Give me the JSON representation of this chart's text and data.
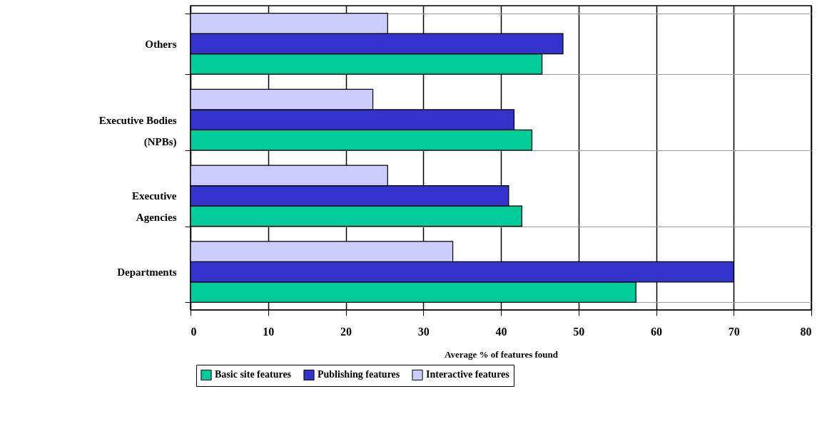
{
  "chart_data": {
    "type": "bar",
    "orientation": "horizontal",
    "xlabel": "Average % of features found",
    "categories": [
      "Others",
      "Executive Bodies (NPBs)",
      "Executive Agencies",
      "Departments"
    ],
    "series": [
      {
        "name": "Basic site features",
        "color": "#00cc99",
        "values": [
          45.3,
          44.0,
          42.7,
          57.4
        ]
      },
      {
        "name": "Publishing features",
        "color": "#3333cc",
        "values": [
          48.0,
          41.7,
          41.0,
          70
        ]
      },
      {
        "name": "Interactive features",
        "color": "#ccccff",
        "values": [
          25.4,
          23.5,
          25.4,
          33.8
        ]
      }
    ],
    "xlim": [
      0,
      80
    ],
    "xticks": [
      0,
      10,
      20,
      30,
      40,
      50,
      60,
      70,
      80
    ],
    "grid": true,
    "legend": "bottom"
  }
}
